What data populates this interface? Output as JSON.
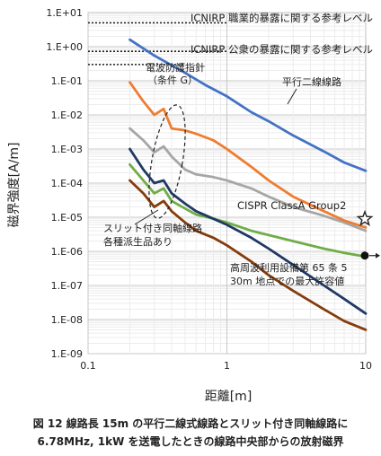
{
  "chart_data": {
    "type": "line",
    "x_scale": "log",
    "y_scale": "log",
    "xlim": [
      0.1,
      10
    ],
    "ylim": [
      1e-09,
      10
    ],
    "xlabel": "距離[m]",
    "ylabel": "磁界強度[A/m]",
    "x_ticks": [
      "0.1",
      "1",
      "10"
    ],
    "y_ticks": [
      "1.E-09",
      "1.E-08",
      "1.E-07",
      "1.E-06",
      "1.E-05",
      "1.E-04",
      "1.E-03",
      "1.E-02",
      "1.E-01",
      "1.E+00",
      "1.E+01"
    ],
    "grid": true,
    "series": [
      {
        "name": "平行二線線路",
        "color": "#4472C4",
        "x": [
          0.2,
          0.3,
          0.5,
          0.7,
          1,
          1.5,
          2,
          3,
          5,
          7,
          10
        ],
        "y": [
          1.6,
          0.55,
          0.17,
          0.075,
          0.035,
          0.012,
          0.0065,
          0.0025,
          0.00085,
          0.0004,
          0.00023
        ]
      },
      {
        "x": [
          0.2,
          0.25,
          0.3,
          0.35,
          0.4,
          0.5,
          0.6,
          0.8,
          1,
          1.5,
          2,
          3,
          5,
          7,
          10
        ],
        "color": "#A6A6A6",
        "y": [
          0.004,
          0.0018,
          0.0008,
          0.0012,
          0.0006,
          0.00025,
          0.00018,
          0.00015,
          0.00012,
          7e-05,
          4e-05,
          2e-05,
          1.1e-05,
          7e-06,
          4e-06
        ]
      },
      {
        "x": [
          0.2,
          0.25,
          0.3,
          0.35,
          0.4,
          0.5,
          0.6,
          0.8,
          1,
          1.5,
          2,
          3,
          5,
          7,
          10
        ],
        "color": "#ED7D31",
        "y": [
          0.09,
          0.025,
          0.01,
          0.015,
          0.004,
          0.0035,
          0.0028,
          0.0018,
          0.001,
          0.0003,
          0.00012,
          4e-05,
          1.5e-05,
          8e-06,
          5e-06
        ]
      },
      {
        "x": [
          0.2,
          0.25,
          0.3,
          0.35,
          0.4,
          0.5,
          0.6,
          0.8,
          1,
          1.5,
          2,
          3,
          5,
          7,
          10
        ],
        "color": "#70AD47",
        "y": [
          0.00035,
          0.00012,
          5e-05,
          7e-05,
          3e-05,
          1.8e-05,
          1.2e-05,
          9e-06,
          7e-06,
          4e-06,
          3e-06,
          2e-06,
          1.2e-06,
          9e-07,
          7e-07
        ]
      },
      {
        "x": [
          0.2,
          0.25,
          0.3,
          0.35,
          0.4,
          0.5,
          0.6,
          0.8,
          1,
          1.5,
          2,
          3,
          5,
          7,
          10
        ],
        "color": "#203864",
        "y": [
          0.001,
          0.00025,
          0.0001,
          0.00012,
          5e-05,
          2.5e-05,
          1.5e-05,
          9e-06,
          6e-06,
          2.5e-06,
          1.2e-06,
          4e-07,
          1e-07,
          4e-08,
          1.5e-08
        ]
      },
      {
        "x": [
          0.2,
          0.25,
          0.3,
          0.35,
          0.4,
          0.5,
          0.6,
          0.8,
          1,
          1.5,
          2,
          3,
          5,
          7,
          10
        ],
        "color": "#843C0C",
        "y": [
          0.00012,
          5e-05,
          2e-05,
          3e-05,
          1.5e-05,
          7e-06,
          4e-06,
          2.5e-06,
          1.5e-06,
          5e-07,
          2e-07,
          7e-08,
          2e-08,
          9e-09,
          5e-09
        ]
      }
    ],
    "reference_lines": [
      {
        "label": "ICNIRP 職業的暴露に関する参考レベル",
        "y": 5.0,
        "x_end": 1.0
      },
      {
        "label": "ICNIRP 公衆の暴露に関する参考レベル",
        "y": 0.73,
        "x_end": 1.0
      },
      {
        "label": "",
        "y": 0.3,
        "x_end": 0.5
      }
    ],
    "annotations": {
      "guideline_label": [
        "電波防護指針",
        "（条件 G）"
      ],
      "parallel_label": "平行二線線路",
      "cispr_label": "CISPR ClassA Group2",
      "coax_label": [
        "スリット付き同軸線路",
        "各種派生品あり"
      ],
      "ism_label": [
        "高周波利用設備第 65 条 5",
        "30m 地点での最大許容値"
      ]
    },
    "markers": [
      {
        "name": "CISPR point",
        "x": 10,
        "y": 8.9e-06,
        "symbol": "star"
      },
      {
        "name": "ISM point",
        "x": 10,
        "y": 7.5e-07,
        "symbol": "dot"
      }
    ],
    "caption": [
      "図 12 線路長 15m の平行二線式線路とスリット付き同軸線路に",
      "6.78MHz, 1kW を送電したときの線路中央部からの放射磁界"
    ]
  }
}
